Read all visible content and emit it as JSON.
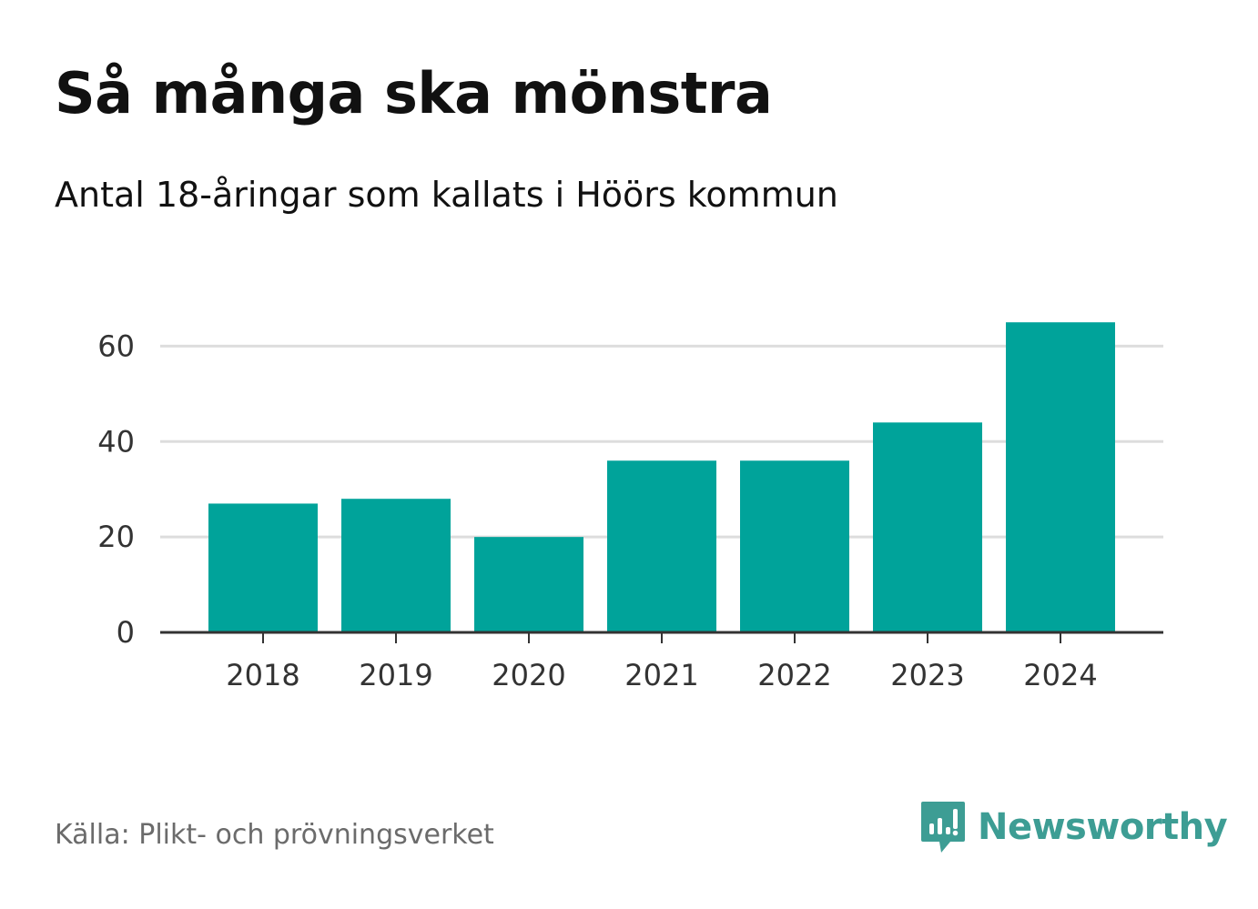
{
  "title": "Så många ska mönstra",
  "subtitle": "Antal 18-åringar som kallats i Höörs kommun",
  "source": "Källa: Plikt- och prövningsverket",
  "brand": {
    "name": "Newsworthy",
    "icon": "newsworthy-logo-icon",
    "color": "#3d9d94"
  },
  "colors": {
    "bar": "#00a39a",
    "grid": "#dddddd",
    "axis": "#333333"
  },
  "chart_data": {
    "type": "bar",
    "categories": [
      "2018",
      "2019",
      "2020",
      "2021",
      "2022",
      "2023",
      "2024"
    ],
    "values": [
      27,
      28,
      20,
      36,
      36,
      44,
      65
    ],
    "yticks": [
      0,
      20,
      40,
      60
    ],
    "ylim": [
      0,
      70
    ],
    "grid": true,
    "title": "Så många ska mönstra",
    "subtitle": "Antal 18-åringar som kallats i Höörs kommun"
  }
}
